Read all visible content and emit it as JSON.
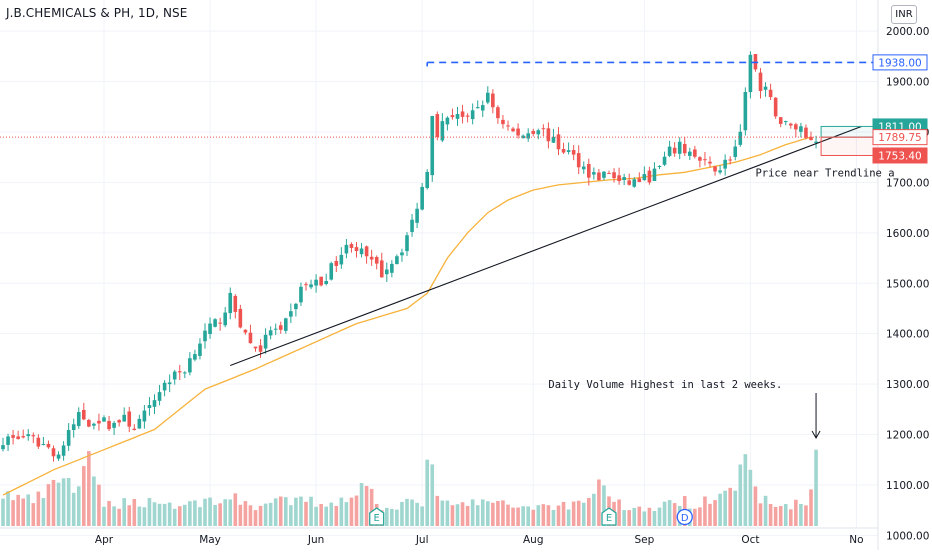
{
  "header": {
    "title": "J.B.CHEMICALS & PH, 1D, NSE",
    "currency": "INR"
  },
  "colors": {
    "up": "#26a69a",
    "down": "#ef5350",
    "up_volume": "#9fd6cf",
    "down_volume": "#f5a3a1",
    "ma": "#f7b23b",
    "trendline": "#131722",
    "resistance": "#2962ff",
    "grid": "#f0f3fa",
    "axis_text": "#131722"
  },
  "chart_data": {
    "type": "candlestick",
    "title": "J.B.CHEMICALS & PH, 1D, NSE",
    "x_axis": {
      "labels": [
        "Apr",
        "May",
        "Jun",
        "Jul",
        "Aug",
        "Sep",
        "Oct",
        "No"
      ],
      "label_day_index": [
        20,
        41,
        62,
        83,
        105,
        127,
        148,
        169
      ]
    },
    "y_axis": {
      "min": 975,
      "max": 2030,
      "ticks": [
        2000,
        1900,
        1800,
        1700,
        1600,
        1500,
        1400,
        1300,
        1200,
        1100,
        1000
      ],
      "tick_labels": [
        "2000.00",
        "1900.00",
        "1800.00",
        "1700.00",
        "1600.00",
        "1500.00",
        "1400.00",
        "1300.00",
        "1200.00",
        "1100.00",
        "1000.00"
      ]
    },
    "price_anchors_day_close": [
      [
        0,
        1190
      ],
      [
        4,
        1195
      ],
      [
        8,
        1180
      ],
      [
        11,
        1160
      ],
      [
        13,
        1200
      ],
      [
        15,
        1240
      ],
      [
        17,
        1225
      ],
      [
        19,
        1230
      ],
      [
        21,
        1220
      ],
      [
        24,
        1230
      ],
      [
        26,
        1215
      ],
      [
        29,
        1250
      ],
      [
        31,
        1290
      ],
      [
        33,
        1310
      ],
      [
        36,
        1330
      ],
      [
        38,
        1370
      ],
      [
        40,
        1400
      ],
      [
        43,
        1430
      ],
      [
        45,
        1470
      ],
      [
        47,
        1420
      ],
      [
        49,
        1380
      ],
      [
        51,
        1370
      ],
      [
        53,
        1410
      ],
      [
        55,
        1400
      ],
      [
        57,
        1440
      ],
      [
        59,
        1490
      ],
      [
        61,
        1500
      ],
      [
        63,
        1500
      ],
      [
        65,
        1530
      ],
      [
        67,
        1560
      ],
      [
        69,
        1580
      ],
      [
        71,
        1560
      ],
      [
        73,
        1540
      ],
      [
        75,
        1520
      ],
      [
        77,
        1545
      ],
      [
        79,
        1570
      ],
      [
        81,
        1620
      ],
      [
        83,
        1690
      ],
      [
        84,
        1730
      ],
      [
        85,
        1840
      ],
      [
        86,
        1800
      ],
      [
        88,
        1830
      ],
      [
        90,
        1840
      ],
      [
        92,
        1820
      ],
      [
        94,
        1850
      ],
      [
        96,
        1870
      ],
      [
        98,
        1830
      ],
      [
        100,
        1810
      ],
      [
        102,
        1790
      ],
      [
        104,
        1800
      ],
      [
        106,
        1810
      ],
      [
        108,
        1790
      ],
      [
        110,
        1770
      ],
      [
        112,
        1760
      ],
      [
        114,
        1740
      ],
      [
        116,
        1720
      ],
      [
        118,
        1710
      ],
      [
        120,
        1720
      ],
      [
        122,
        1700
      ],
      [
        124,
        1700
      ],
      [
        126,
        1705
      ],
      [
        128,
        1710
      ],
      [
        130,
        1730
      ],
      [
        132,
        1760
      ],
      [
        134,
        1770
      ],
      [
        136,
        1760
      ],
      [
        138,
        1740
      ],
      [
        140,
        1730
      ],
      [
        142,
        1730
      ],
      [
        144,
        1750
      ],
      [
        146,
        1790
      ],
      [
        147,
        1870
      ],
      [
        148,
        1960
      ],
      [
        149,
        1920
      ],
      [
        150,
        1880
      ],
      [
        151,
        1880
      ],
      [
        152,
        1860
      ],
      [
        153,
        1840
      ],
      [
        154,
        1820
      ],
      [
        156,
        1810
      ],
      [
        158,
        1810
      ],
      [
        159,
        1790
      ],
      [
        160,
        1790
      ],
      [
        161,
        1790
      ]
    ],
    "volume_anchors_day_value": [
      [
        0,
        0.32
      ],
      [
        6,
        0.25
      ],
      [
        10,
        0.38
      ],
      [
        12,
        0.55
      ],
      [
        14,
        0.35
      ],
      [
        17,
        0.6
      ],
      [
        20,
        0.22
      ],
      [
        30,
        0.25
      ],
      [
        35,
        0.2
      ],
      [
        40,
        0.25
      ],
      [
        45,
        0.28
      ],
      [
        50,
        0.2
      ],
      [
        55,
        0.24
      ],
      [
        60,
        0.25
      ],
      [
        65,
        0.22
      ],
      [
        70,
        0.35
      ],
      [
        72,
        0.4
      ],
      [
        75,
        0.2
      ],
      [
        80,
        0.22
      ],
      [
        83,
        0.25
      ],
      [
        84,
        0.62
      ],
      [
        85,
        0.52
      ],
      [
        86,
        0.25
      ],
      [
        90,
        0.2
      ],
      [
        95,
        0.25
      ],
      [
        100,
        0.2
      ],
      [
        110,
        0.2
      ],
      [
        115,
        0.24
      ],
      [
        118,
        0.45
      ],
      [
        121,
        0.25
      ],
      [
        125,
        0.16
      ],
      [
        131,
        0.2
      ],
      [
        134,
        0.25
      ],
      [
        137,
        0.22
      ],
      [
        141,
        0.32
      ],
      [
        143,
        0.42
      ],
      [
        145,
        0.38
      ],
      [
        146,
        0.5
      ],
      [
        147,
        0.6
      ],
      [
        148,
        0.5
      ],
      [
        149,
        0.35
      ],
      [
        152,
        0.2
      ],
      [
        157,
        0.22
      ],
      [
        160,
        0.3
      ],
      [
        161,
        0.7
      ]
    ],
    "volume_axis": {
      "max": 1
    },
    "moving_average": {
      "points_day_value": [
        [
          0,
          1080
        ],
        [
          10,
          1130
        ],
        [
          20,
          1170
        ],
        [
          30,
          1210
        ],
        [
          40,
          1290
        ],
        [
          50,
          1330
        ],
        [
          60,
          1375
        ],
        [
          70,
          1420
        ],
        [
          80,
          1450
        ],
        [
          84,
          1480
        ],
        [
          88,
          1550
        ],
        [
          92,
          1600
        ],
        [
          96,
          1640
        ],
        [
          100,
          1665
        ],
        [
          105,
          1685
        ],
        [
          110,
          1695
        ],
        [
          115,
          1700
        ],
        [
          120,
          1705
        ],
        [
          125,
          1708
        ],
        [
          130,
          1715
        ],
        [
          135,
          1720
        ],
        [
          140,
          1730
        ],
        [
          145,
          1740
        ],
        [
          150,
          1755
        ],
        [
          155,
          1775
        ],
        [
          160,
          1790
        ]
      ]
    },
    "trendline": {
      "from_day": 45,
      "from_value": 1337,
      "to_day": 170,
      "to_value": 1811
    },
    "resistance": {
      "value": 1938,
      "from_day": 84,
      "to_day": 170
    },
    "current_level_line": 1789.75,
    "price_labels": [
      {
        "value": 1938,
        "text": "1938.00",
        "style": "outline-blue"
      },
      {
        "value": 1811,
        "text": "1811.00",
        "style": "filled-green"
      },
      {
        "value": 1789.75,
        "text": "1789.75",
        "style": "outline-red"
      },
      {
        "value": 1753.4,
        "text": "1753.40",
        "style": "filled-red"
      }
    ],
    "annotations": [
      {
        "text": "Price near Trendline a",
        "day": 149,
        "value": 1712
      },
      {
        "text": "Daily Volume Highest in last 2 weeks.",
        "day": 108,
        "value": 1292
      }
    ],
    "event_markers": [
      {
        "label": "E",
        "day": 74
      },
      {
        "label": "E",
        "day": 120
      },
      {
        "label": "D",
        "day": 135
      }
    ]
  }
}
